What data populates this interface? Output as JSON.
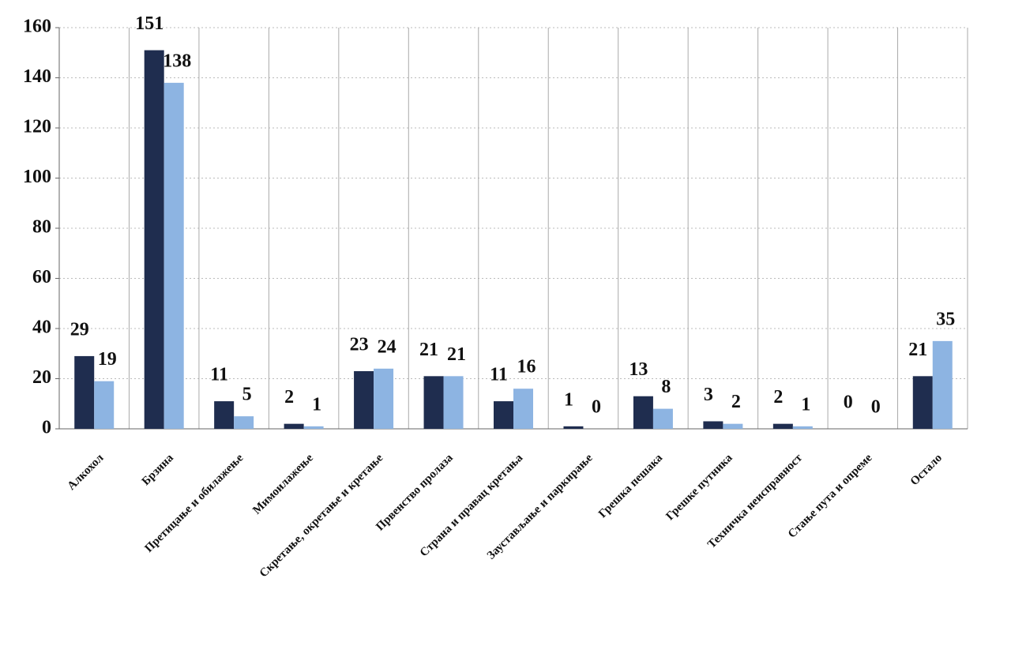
{
  "chart_data": {
    "type": "bar",
    "categories": [
      "Алкохол",
      "Брзина",
      "Претицање и обилажење",
      "Мимоилажење",
      "Скретање, окретање и кретање",
      "Првенство пролаза",
      "Страна и правац кретања",
      "Заустављање и паркирање",
      "Грешка пешака",
      "Грешке путника",
      "Техничка неисправност",
      "Стање пута и опреме",
      "Остало"
    ],
    "series": [
      {
        "color": "#1f2d4f",
        "values": [
          29,
          151,
          11,
          2,
          23,
          21,
          11,
          1,
          13,
          3,
          2,
          0,
          21
        ]
      },
      {
        "color": "#8db4e2",
        "values": [
          19,
          138,
          5,
          1,
          24,
          21,
          16,
          0,
          8,
          2,
          1,
          0,
          35
        ]
      }
    ],
    "ylim": [
      0,
      160
    ],
    "yticks": [
      0,
      20,
      40,
      60,
      80,
      100,
      120,
      140,
      160
    ],
    "grid": true
  }
}
